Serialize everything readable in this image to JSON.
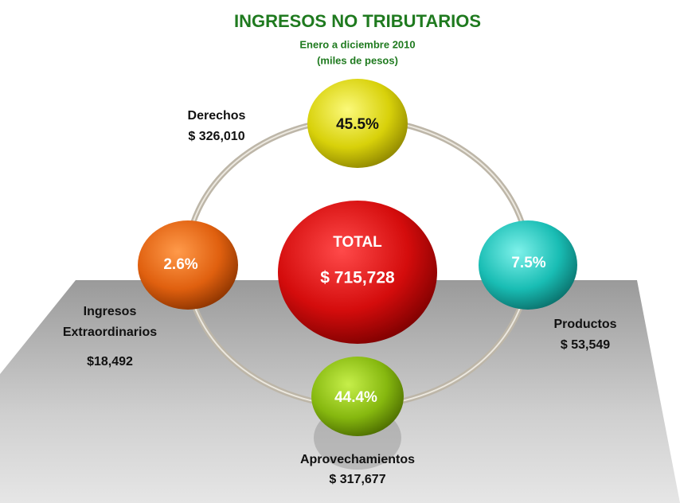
{
  "header": {
    "title": "INGRESOS NO TRIBUTARIOS",
    "subtitle": "Enero a diciembre 2010",
    "units": "(miles de pesos)"
  },
  "total": {
    "label": "TOTAL",
    "amount": "$ 715,728"
  },
  "nodes": [
    {
      "name": "Derechos",
      "amount": "$  326,010",
      "percent": "45.5%"
    },
    {
      "name": "Productos",
      "amount": "$  53,549",
      "percent": "7.5%"
    },
    {
      "name": "Aprovechamientos",
      "amount": "$ 317,677",
      "percent": "44.4%"
    },
    {
      "name_lines": [
        "Ingresos",
        "Extraordinarios"
      ],
      "amount": "$18,492",
      "percent": "2.6%"
    }
  ]
}
